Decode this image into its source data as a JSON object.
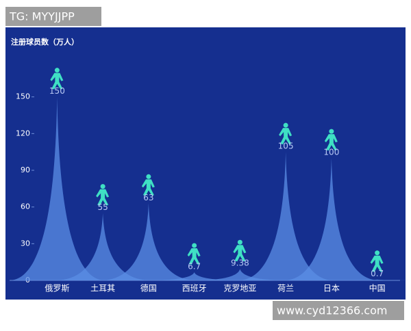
{
  "header_tag": "TG: MYYJJPP",
  "watermark": "www.cyd12366.com",
  "chart_data": {
    "type": "pictorial-spike",
    "y_axis_label": "注册球员数（万人）",
    "categories": [
      "俄罗斯",
      "土耳其",
      "德国",
      "西班牙",
      "克罗地亚",
      "荷兰",
      "日本",
      "中国"
    ],
    "values": [
      150,
      55,
      63,
      6.7,
      9.38,
      105,
      100,
      0.7
    ],
    "color": "#5b8fe6",
    "icon_color": "#3fe0c4",
    "ylim": [
      0,
      180
    ],
    "yticks": [
      0,
      30,
      60,
      90,
      120,
      150
    ]
  }
}
